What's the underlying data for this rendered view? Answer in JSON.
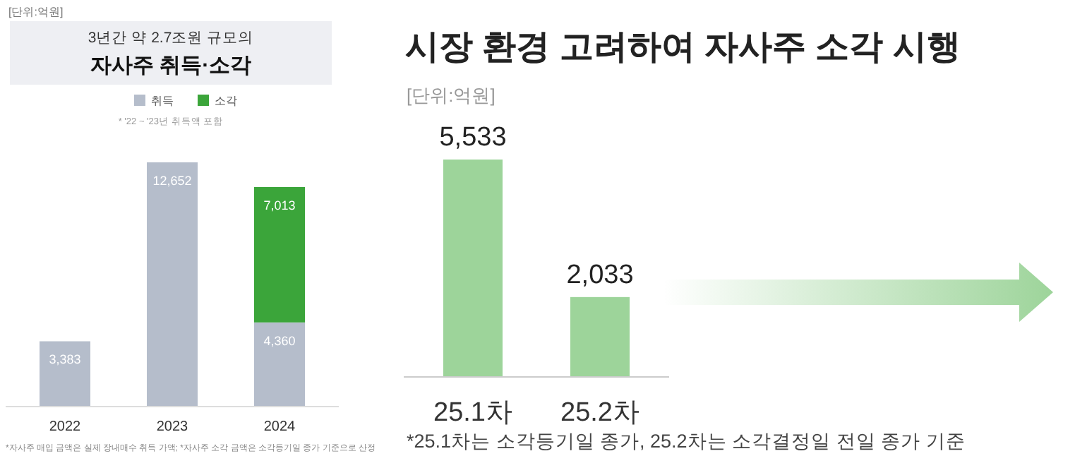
{
  "chart_data": [
    {
      "type": "bar",
      "stacked": true,
      "subtitle": "3년간 약 2.7조원 규모의",
      "title": "자사주 취득·소각",
      "legend": "top",
      "categories": [
        "2022",
        "2023",
        "2024"
      ],
      "series": [
        {
          "name": "취득",
          "color": "#b5bdcb",
          "values": [
            3383,
            12652,
            4360
          ],
          "value_labels": [
            "3,383",
            "12,652",
            "4,360"
          ]
        },
        {
          "name": "소각",
          "color": "#3ba53a",
          "values": [
            null,
            null,
            7013
          ],
          "value_labels": [
            null,
            null,
            "7,013"
          ]
        }
      ],
      "annotations": [
        "[단위:억원]",
        "* '22 ~ '23년 취득액 포함",
        "*자사주 매입 금액은 실제 장내매수 취득 가액; *자사주 소각 금액은 소각등기일 종가 기준으로 산정"
      ]
    },
    {
      "type": "bar",
      "title": "시장 환경 고려하여 자사주 소각 시행",
      "categories": [
        "25.1차",
        "25.2차"
      ],
      "values": [
        5533,
        2033
      ],
      "color": "#9dd49a",
      "value_labels": [
        "5,533",
        "2,033"
      ],
      "annotations": [
        "[단위:억원]",
        "*25.1차는 소각등기일 종가, 25.2차는 소각결정일 전일 종가 기준"
      ]
    }
  ]
}
